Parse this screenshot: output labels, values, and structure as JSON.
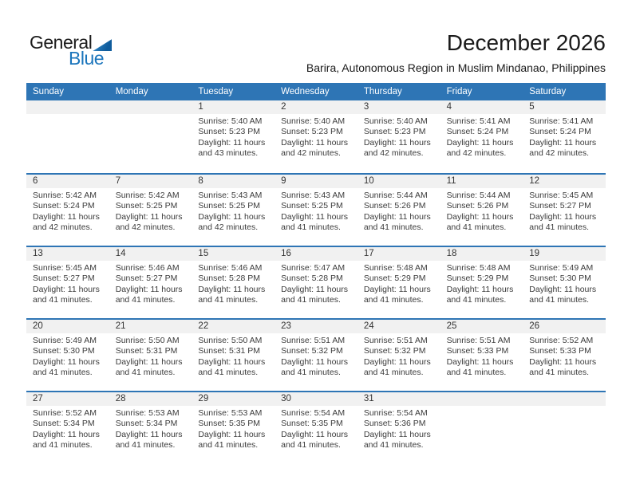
{
  "logo": {
    "general": "General",
    "blue": "Blue"
  },
  "header": {
    "title": "December 2026",
    "subtitle": "Barira, Autonomous Region in Muslim Mindanao, Philippines"
  },
  "colors": {
    "header_bg": "#2E75B5",
    "separator": "#2E75B5",
    "strip_bg": "#F1F1F1",
    "logo_blue": "#1B75BC"
  },
  "calendar": {
    "day_headers": [
      "Sunday",
      "Monday",
      "Tuesday",
      "Wednesday",
      "Thursday",
      "Friday",
      "Saturday"
    ],
    "weeks": [
      [
        null,
        null,
        {
          "day": "1",
          "sunrise": "Sunrise: 5:40 AM",
          "sunset": "Sunset: 5:23 PM",
          "daylight": "Daylight: 11 hours and 43 minutes."
        },
        {
          "day": "2",
          "sunrise": "Sunrise: 5:40 AM",
          "sunset": "Sunset: 5:23 PM",
          "daylight": "Daylight: 11 hours and 42 minutes."
        },
        {
          "day": "3",
          "sunrise": "Sunrise: 5:40 AM",
          "sunset": "Sunset: 5:23 PM",
          "daylight": "Daylight: 11 hours and 42 minutes."
        },
        {
          "day": "4",
          "sunrise": "Sunrise: 5:41 AM",
          "sunset": "Sunset: 5:24 PM",
          "daylight": "Daylight: 11 hours and 42 minutes."
        },
        {
          "day": "5",
          "sunrise": "Sunrise: 5:41 AM",
          "sunset": "Sunset: 5:24 PM",
          "daylight": "Daylight: 11 hours and 42 minutes."
        }
      ],
      [
        {
          "day": "6",
          "sunrise": "Sunrise: 5:42 AM",
          "sunset": "Sunset: 5:24 PM",
          "daylight": "Daylight: 11 hours and 42 minutes."
        },
        {
          "day": "7",
          "sunrise": "Sunrise: 5:42 AM",
          "sunset": "Sunset: 5:25 PM",
          "daylight": "Daylight: 11 hours and 42 minutes."
        },
        {
          "day": "8",
          "sunrise": "Sunrise: 5:43 AM",
          "sunset": "Sunset: 5:25 PM",
          "daylight": "Daylight: 11 hours and 42 minutes."
        },
        {
          "day": "9",
          "sunrise": "Sunrise: 5:43 AM",
          "sunset": "Sunset: 5:25 PM",
          "daylight": "Daylight: 11 hours and 41 minutes."
        },
        {
          "day": "10",
          "sunrise": "Sunrise: 5:44 AM",
          "sunset": "Sunset: 5:26 PM",
          "daylight": "Daylight: 11 hours and 41 minutes."
        },
        {
          "day": "11",
          "sunrise": "Sunrise: 5:44 AM",
          "sunset": "Sunset: 5:26 PM",
          "daylight": "Daylight: 11 hours and 41 minutes."
        },
        {
          "day": "12",
          "sunrise": "Sunrise: 5:45 AM",
          "sunset": "Sunset: 5:27 PM",
          "daylight": "Daylight: 11 hours and 41 minutes."
        }
      ],
      [
        {
          "day": "13",
          "sunrise": "Sunrise: 5:45 AM",
          "sunset": "Sunset: 5:27 PM",
          "daylight": "Daylight: 11 hours and 41 minutes."
        },
        {
          "day": "14",
          "sunrise": "Sunrise: 5:46 AM",
          "sunset": "Sunset: 5:27 PM",
          "daylight": "Daylight: 11 hours and 41 minutes."
        },
        {
          "day": "15",
          "sunrise": "Sunrise: 5:46 AM",
          "sunset": "Sunset: 5:28 PM",
          "daylight": "Daylight: 11 hours and 41 minutes."
        },
        {
          "day": "16",
          "sunrise": "Sunrise: 5:47 AM",
          "sunset": "Sunset: 5:28 PM",
          "daylight": "Daylight: 11 hours and 41 minutes."
        },
        {
          "day": "17",
          "sunrise": "Sunrise: 5:48 AM",
          "sunset": "Sunset: 5:29 PM",
          "daylight": "Daylight: 11 hours and 41 minutes."
        },
        {
          "day": "18",
          "sunrise": "Sunrise: 5:48 AM",
          "sunset": "Sunset: 5:29 PM",
          "daylight": "Daylight: 11 hours and 41 minutes."
        },
        {
          "day": "19",
          "sunrise": "Sunrise: 5:49 AM",
          "sunset": "Sunset: 5:30 PM",
          "daylight": "Daylight: 11 hours and 41 minutes."
        }
      ],
      [
        {
          "day": "20",
          "sunrise": "Sunrise: 5:49 AM",
          "sunset": "Sunset: 5:30 PM",
          "daylight": "Daylight: 11 hours and 41 minutes."
        },
        {
          "day": "21",
          "sunrise": "Sunrise: 5:50 AM",
          "sunset": "Sunset: 5:31 PM",
          "daylight": "Daylight: 11 hours and 41 minutes."
        },
        {
          "day": "22",
          "sunrise": "Sunrise: 5:50 AM",
          "sunset": "Sunset: 5:31 PM",
          "daylight": "Daylight: 11 hours and 41 minutes."
        },
        {
          "day": "23",
          "sunrise": "Sunrise: 5:51 AM",
          "sunset": "Sunset: 5:32 PM",
          "daylight": "Daylight: 11 hours and 41 minutes."
        },
        {
          "day": "24",
          "sunrise": "Sunrise: 5:51 AM",
          "sunset": "Sunset: 5:32 PM",
          "daylight": "Daylight: 11 hours and 41 minutes."
        },
        {
          "day": "25",
          "sunrise": "Sunrise: 5:51 AM",
          "sunset": "Sunset: 5:33 PM",
          "daylight": "Daylight: 11 hours and 41 minutes."
        },
        {
          "day": "26",
          "sunrise": "Sunrise: 5:52 AM",
          "sunset": "Sunset: 5:33 PM",
          "daylight": "Daylight: 11 hours and 41 minutes."
        }
      ],
      [
        {
          "day": "27",
          "sunrise": "Sunrise: 5:52 AM",
          "sunset": "Sunset: 5:34 PM",
          "daylight": "Daylight: 11 hours and 41 minutes."
        },
        {
          "day": "28",
          "sunrise": "Sunrise: 5:53 AM",
          "sunset": "Sunset: 5:34 PM",
          "daylight": "Daylight: 11 hours and 41 minutes."
        },
        {
          "day": "29",
          "sunrise": "Sunrise: 5:53 AM",
          "sunset": "Sunset: 5:35 PM",
          "daylight": "Daylight: 11 hours and 41 minutes."
        },
        {
          "day": "30",
          "sunrise": "Sunrise: 5:54 AM",
          "sunset": "Sunset: 5:35 PM",
          "daylight": "Daylight: 11 hours and 41 minutes."
        },
        {
          "day": "31",
          "sunrise": "Sunrise: 5:54 AM",
          "sunset": "Sunset: 5:36 PM",
          "daylight": "Daylight: 11 hours and 41 minutes."
        },
        null,
        null
      ]
    ]
  }
}
